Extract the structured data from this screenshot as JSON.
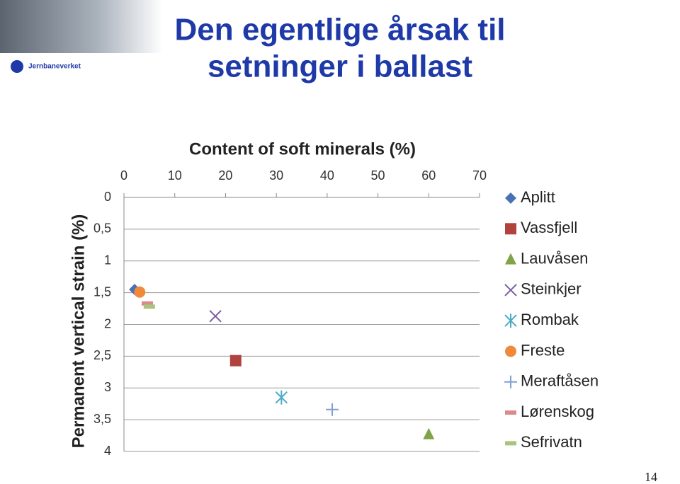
{
  "slide": {
    "title": [
      "Den egentlige årsak til",
      "setninger i ballast"
    ],
    "logo_text": "Jernbaneverket",
    "page_number": "14"
  },
  "chart_data": {
    "type": "scatter",
    "xlabel": "Content of soft minerals  (%)",
    "ylabel": "Permanent vertical strain (%)",
    "xlim": [
      0,
      70
    ],
    "xticks": [
      0,
      10,
      20,
      30,
      40,
      50,
      60,
      70
    ],
    "x_axis_position": "top",
    "ylim": [
      0,
      4
    ],
    "y_axis_inverted": true,
    "yticks": [
      0,
      {
        "value": 0.5,
        "label": "0,5"
      },
      1,
      {
        "value": 1.5,
        "label": "1,5"
      },
      2,
      {
        "value": 2.5,
        "label": "2,5"
      },
      3,
      {
        "value": 3.5,
        "label": "3,5"
      },
      4
    ],
    "grid": true,
    "legend": "right",
    "series": [
      {
        "name": "Aplitt",
        "color": "#4a72b0",
        "marker": "diamond",
        "x": [
          2.1
        ],
        "values": [
          1.45
        ]
      },
      {
        "name": "Vassfjell",
        "color": "#b04340",
        "marker": "square",
        "x": [
          22
        ],
        "values": [
          2.57
        ]
      },
      {
        "name": "Lauvåsen",
        "color": "#7fa346",
        "marker": "triangle",
        "x": [
          60
        ],
        "values": [
          3.73
        ]
      },
      {
        "name": "Steinkjer",
        "color": "#7c5fa0",
        "marker": "x",
        "x": [
          18
        ],
        "values": [
          1.87
        ]
      },
      {
        "name": "Rombak",
        "color": "#4aabc5",
        "marker": "star",
        "x": [
          31
        ],
        "values": [
          3.15
        ]
      },
      {
        "name": "Freste",
        "color": "#f08a3a",
        "marker": "circle",
        "x": [
          3.1
        ],
        "values": [
          1.49
        ]
      },
      {
        "name": "Meraftåsen",
        "color": "#7d9fd4",
        "marker": "plus",
        "x": [
          41
        ],
        "values": [
          3.34
        ]
      },
      {
        "name": "Lørenskog",
        "color": "#d98a8a",
        "marker": "dash",
        "x": [
          4.6
        ],
        "values": [
          1.67
        ]
      },
      {
        "name": "Sefrivatn",
        "color": "#a8c47f",
        "marker": "dash",
        "x": [
          5
        ],
        "values": [
          1.72
        ]
      }
    ]
  }
}
